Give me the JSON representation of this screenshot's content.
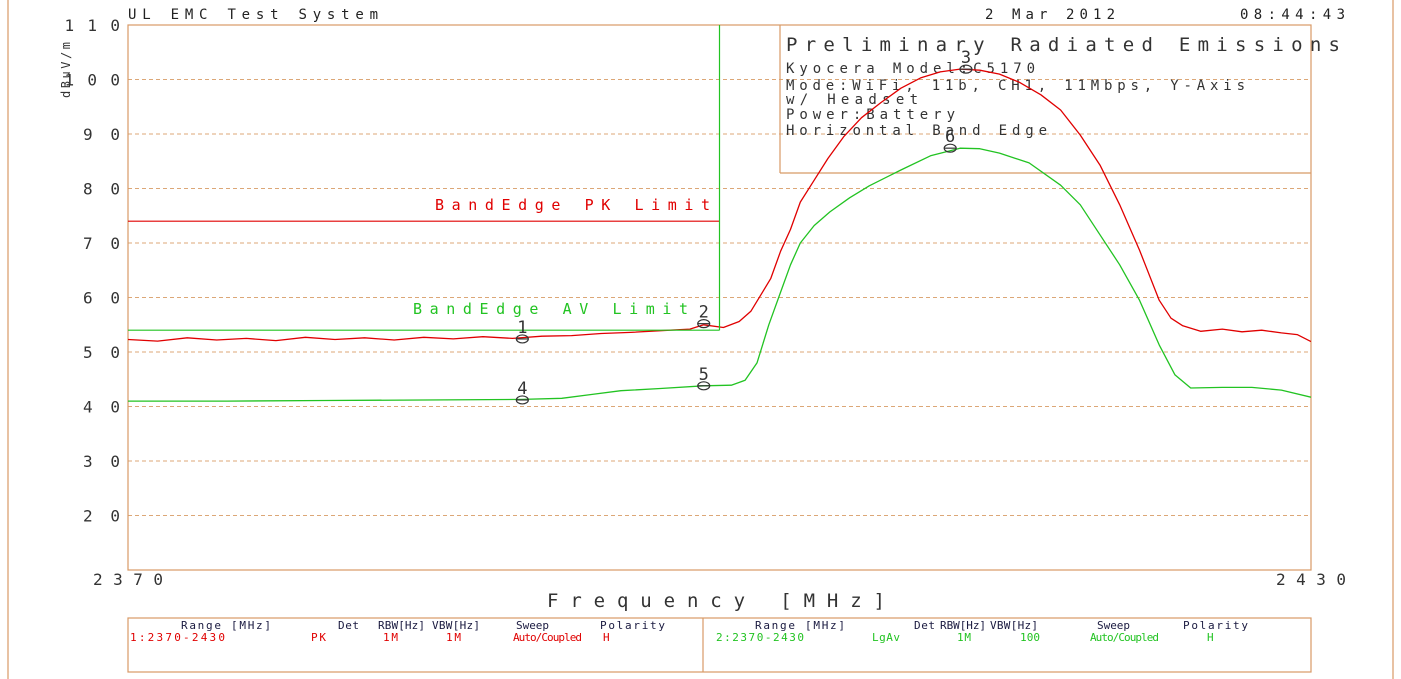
{
  "header": {
    "system": "UL EMC Test System",
    "date": "2 Mar 2012",
    "time": "08:44:43"
  },
  "colors": {
    "frame": "#d89a66",
    "grid": "#dca777",
    "peak": "#e00000",
    "average": "#22c322",
    "text": "#333333"
  },
  "chart_data": {
    "type": "line",
    "title": "Preliminary Radiated Emissions",
    "annotations": [
      "Kyocera Model:C5170",
      "Mode:WiFi, 11b, CH1, 11Mbps, Y-Axis",
      "w/ Headset",
      "Power:Battery",
      "Horizontal Band Edge"
    ],
    "xlabel": "Frequency [MHz]",
    "ylabel": "dBuV/m",
    "xlim": [
      2370,
      2430
    ],
    "ylim": [
      10,
      110
    ],
    "xticks": [
      2370,
      2430
    ],
    "yticks": [
      110,
      100,
      90,
      80,
      70,
      60,
      50,
      40,
      30,
      20
    ],
    "grid": true,
    "series": [
      {
        "color": "#e00000",
        "points": [
          [
            2370,
            52.3
          ],
          [
            2371.5,
            52.0
          ],
          [
            2373,
            52.6
          ],
          [
            2374.5,
            52.2
          ],
          [
            2376,
            52.5
          ],
          [
            2377.5,
            52.1
          ],
          [
            2379,
            52.7
          ],
          [
            2380.5,
            52.3
          ],
          [
            2382,
            52.6
          ],
          [
            2383.5,
            52.2
          ],
          [
            2385,
            52.7
          ],
          [
            2386.5,
            52.4
          ],
          [
            2388,
            52.8
          ],
          [
            2389.5,
            52.5
          ],
          [
            2391,
            52.9
          ],
          [
            2392.5,
            53.0
          ],
          [
            2394,
            53.4
          ],
          [
            2395.5,
            53.6
          ],
          [
            2397,
            53.9
          ],
          [
            2398.5,
            54.2
          ],
          [
            2399.2,
            55.0
          ],
          [
            2400.2,
            54.5
          ],
          [
            2401,
            55.6
          ],
          [
            2401.6,
            57.5
          ],
          [
            2402.1,
            60.5
          ],
          [
            2402.6,
            63.5
          ],
          [
            2403.1,
            68.5
          ],
          [
            2403.6,
            72.5
          ],
          [
            2404.1,
            77.5
          ],
          [
            2404.8,
            81.5
          ],
          [
            2405.5,
            85.5
          ],
          [
            2406.3,
            89.5
          ],
          [
            2407.2,
            93.0
          ],
          [
            2408.2,
            95.8
          ],
          [
            2409.2,
            98.4
          ],
          [
            2410.2,
            100.3
          ],
          [
            2411.2,
            101.4
          ],
          [
            2412.2,
            101.9
          ],
          [
            2413.2,
            101.7
          ],
          [
            2414.2,
            101.0
          ],
          [
            2415.2,
            99.5
          ],
          [
            2416.3,
            97.2
          ],
          [
            2417.3,
            94.4
          ],
          [
            2418.3,
            89.8
          ],
          [
            2419.3,
            84.3
          ],
          [
            2420.3,
            77.0
          ],
          [
            2421.3,
            68.7
          ],
          [
            2422.3,
            59.5
          ],
          [
            2422.9,
            56.2
          ],
          [
            2423.5,
            54.8
          ],
          [
            2424.4,
            53.8
          ],
          [
            2425.5,
            54.2
          ],
          [
            2426.5,
            53.7
          ],
          [
            2427.5,
            54.0
          ],
          [
            2428.5,
            53.5
          ],
          [
            2429.3,
            53.2
          ],
          [
            2430,
            51.9
          ]
        ]
      },
      {
        "color": "#22c322",
        "points": [
          [
            2370,
            41.0
          ],
          [
            2375,
            41.0
          ],
          [
            2380,
            41.1
          ],
          [
            2385,
            41.2
          ],
          [
            2390,
            41.3
          ],
          [
            2392,
            41.5
          ],
          [
            2393.5,
            42.2
          ],
          [
            2395,
            42.9
          ],
          [
            2397,
            43.3
          ],
          [
            2399.2,
            43.8
          ],
          [
            2400.6,
            43.9
          ],
          [
            2401.3,
            44.8
          ],
          [
            2401.9,
            48.0
          ],
          [
            2402.5,
            55.0
          ],
          [
            2403.1,
            61.0
          ],
          [
            2403.6,
            66.0
          ],
          [
            2404.1,
            70.0
          ],
          [
            2404.8,
            73.2
          ],
          [
            2405.6,
            75.7
          ],
          [
            2406.6,
            78.3
          ],
          [
            2407.6,
            80.5
          ],
          [
            2409.2,
            83.4
          ],
          [
            2410.7,
            86.0
          ],
          [
            2412.2,
            87.4
          ],
          [
            2413.2,
            87.3
          ],
          [
            2414.2,
            86.5
          ],
          [
            2415.7,
            84.7
          ],
          [
            2417.3,
            80.6
          ],
          [
            2418.3,
            77.0
          ],
          [
            2419.3,
            71.5
          ],
          [
            2420.3,
            66.0
          ],
          [
            2421.3,
            59.5
          ],
          [
            2422.3,
            51.3
          ],
          [
            2423.1,
            45.8
          ],
          [
            2423.9,
            43.4
          ],
          [
            2425.5,
            43.5
          ],
          [
            2427,
            43.5
          ],
          [
            2428.5,
            43.0
          ],
          [
            2430,
            41.7
          ]
        ]
      }
    ],
    "limits": [
      {
        "label": "BandEdge PK Limit",
        "value": 74,
        "x_from": 2370,
        "x_to": 2400,
        "color": "#e00000"
      },
      {
        "label": "BandEdge AV Limit",
        "value": 54,
        "x_from": 2370,
        "x_to": 2400,
        "color": "#22c322"
      }
    ],
    "band_edge": {
      "x": 2400,
      "y_from": 54,
      "y_to": 110,
      "color": "#22c322"
    },
    "markers": [
      {
        "label": "1",
        "x": 2390,
        "y": 52.4
      },
      {
        "label": "2",
        "x": 2399.2,
        "y": 55.2
      },
      {
        "label": "3",
        "x": 2412.5,
        "y": 101.9
      },
      {
        "label": "4",
        "x": 2390,
        "y": 41.2
      },
      {
        "label": "5",
        "x": 2399.2,
        "y": 43.8
      },
      {
        "label": "6",
        "x": 2411.7,
        "y": 87.4
      }
    ]
  },
  "sweep_table": {
    "headers": {
      "range": "Range [MHz]",
      "det": "Det",
      "rbw": "RBW[Hz]",
      "vbw": "VBW[Hz]",
      "sweep": "Sweep",
      "polarity": "Polarity"
    },
    "rows": [
      {
        "range": "1:2370-2430",
        "det": "PK",
        "rbw": "1M",
        "vbw": "1M",
        "sweep": "Auto/Coupled",
        "polarity": "H"
      },
      {
        "range": "2:2370-2430",
        "det": "LgAv",
        "rbw": "1M",
        "vbw": "100",
        "sweep": "Auto/Coupled",
        "polarity": "H"
      }
    ]
  }
}
